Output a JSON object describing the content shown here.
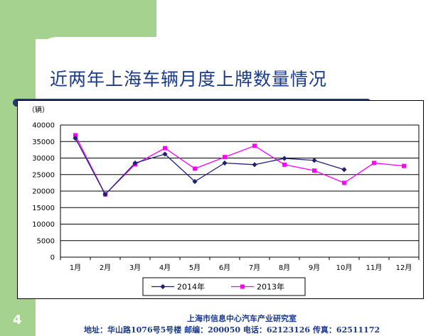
{
  "slide": {
    "title": "近两年上海车辆月度上牌数量情况",
    "page_number": "4",
    "footer_org": "上海市信息中心汽车产业研究室",
    "footer_contact": "地址：华山路1076号5号楼  邮编：200050 电话：62123126 传真：62511172"
  },
  "chart_data": {
    "type": "line",
    "unit_label": "（辆）",
    "categories": [
      "1月",
      "2月",
      "3月",
      "4月",
      "5月",
      "6月",
      "7月",
      "8月",
      "9月",
      "10月",
      "11月",
      "12月"
    ],
    "ylim": [
      0,
      40000
    ],
    "yticks": [
      0,
      5000,
      10000,
      15000,
      20000,
      25000,
      30000,
      35000,
      40000
    ],
    "grid": true,
    "legend_position": "bottom",
    "series": [
      {
        "name": "2014年",
        "color": "#1f1f7a",
        "marker": "diamond",
        "values": [
          36000,
          19000,
          28500,
          31200,
          22900,
          28500,
          28000,
          29900,
          29300,
          26500,
          null,
          null
        ]
      },
      {
        "name": "2013年",
        "color": "#ff00ff",
        "marker": "square",
        "values": [
          36900,
          19000,
          28100,
          33000,
          26800,
          30300,
          33700,
          28000,
          26200,
          22500,
          28500,
          27600
        ]
      }
    ]
  }
}
